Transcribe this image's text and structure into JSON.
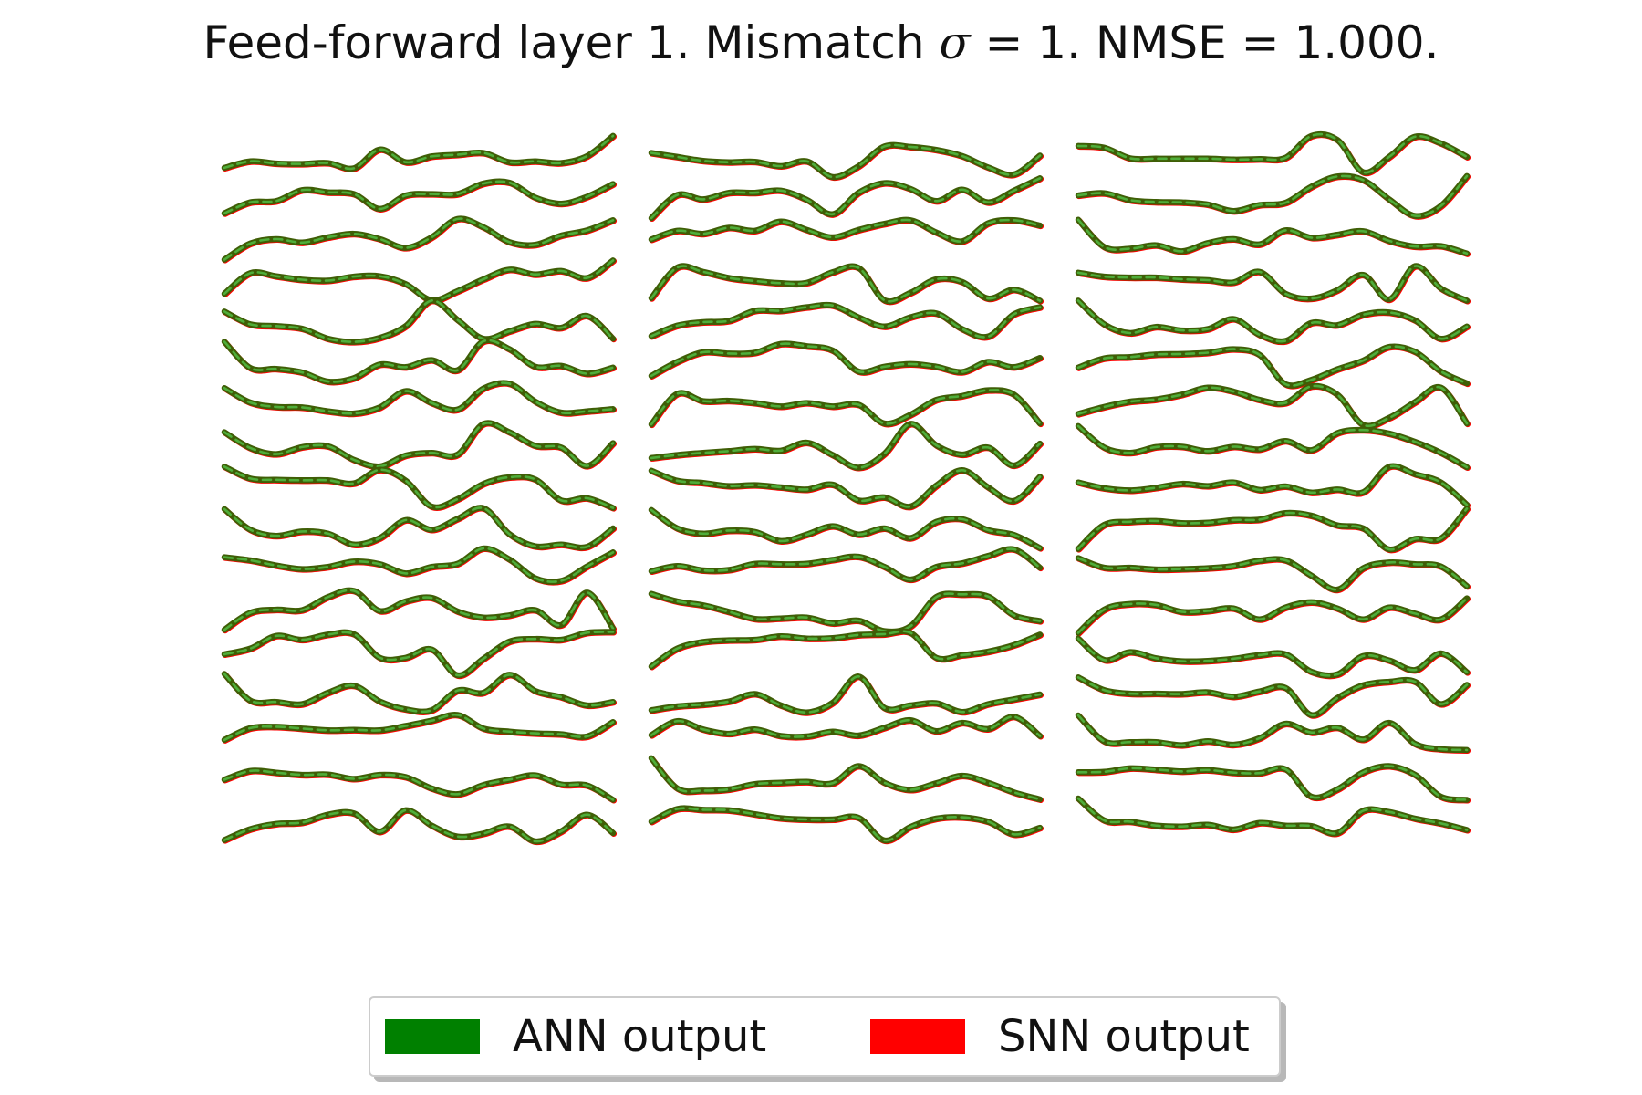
{
  "title": {
    "prefix": "Feed-forward layer 1. Mismatch ",
    "symbol": "σ",
    "suffix": " = 1. NMSE = 1.000."
  },
  "chart_data": {
    "type": "line",
    "grid": false,
    "axes_visible": false,
    "legend_position": "bottom-center",
    "legend": [
      {
        "label": "ANN output",
        "color": "#008000"
      },
      {
        "label": "SNN output",
        "color": "#ff0000"
      }
    ],
    "panels": [
      {
        "traces": [
          [
            0.21,
            0.36,
            0.31,
            0.3,
            0.32,
            0.2,
            0.63,
            0.34,
            0.47,
            0.51,
            0.55,
            0.34,
            0.36,
            0.32,
            0.48,
            0.94
          ],
          [
            0.12,
            0.37,
            0.4,
            0.65,
            0.6,
            0.56,
            0.22,
            0.53,
            0.56,
            0.56,
            0.8,
            0.82,
            0.48,
            0.34,
            0.5,
            0.79
          ],
          [
            0.01,
            0.38,
            0.48,
            0.4,
            0.52,
            0.6,
            0.48,
            0.28,
            0.52,
            0.94,
            0.75,
            0.41,
            0.35,
            0.56,
            0.68,
            0.91
          ],
          [
            0.18,
            0.65,
            0.58,
            0.5,
            0.48,
            0.57,
            0.58,
            0.4,
            0.03,
            0.24,
            0.51,
            0.73,
            0.62,
            0.7,
            0.54,
            0.94
          ],
          [
            0.72,
            0.43,
            0.39,
            0.33,
            0.1,
            0.03,
            0.12,
            0.39,
            0.97,
            0.53,
            0.1,
            0.27,
            0.44,
            0.35,
            0.62,
            0.1
          ],
          [
            0.98,
            0.38,
            0.36,
            0.28,
            0.07,
            0.15,
            0.46,
            0.4,
            0.56,
            0.33,
            0.99,
            0.81,
            0.41,
            0.43,
            0.25,
            0.39
          ],
          [
            0.87,
            0.54,
            0.44,
            0.43,
            0.34,
            0.29,
            0.43,
            0.8,
            0.53,
            0.38,
            0.86,
            0.97,
            0.56,
            0.31,
            0.34,
            0.39
          ],
          [
            0.81,
            0.45,
            0.31,
            0.47,
            0.49,
            0.18,
            0.03,
            0.28,
            0.34,
            0.3,
            1.0,
            0.81,
            0.5,
            0.46,
            0.04,
            0.56
          ],
          [
            0.97,
            0.7,
            0.67,
            0.66,
            0.66,
            0.59,
            0.9,
            0.65,
            0.06,
            0.23,
            0.58,
            0.73,
            0.68,
            0.2,
            0.25,
            0.03
          ],
          [
            0.95,
            0.48,
            0.34,
            0.44,
            0.39,
            0.14,
            0.29,
            0.7,
            0.48,
            0.73,
            0.97,
            0.38,
            0.1,
            0.14,
            0.09,
            0.51
          ],
          [
            0.8,
            0.73,
            0.61,
            0.53,
            0.58,
            0.7,
            0.64,
            0.43,
            0.58,
            0.65,
            1.0,
            0.75,
            0.32,
            0.26,
            0.59,
            0.91
          ],
          [
            0.09,
            0.48,
            0.55,
            0.54,
            0.84,
            0.98,
            0.52,
            0.74,
            0.82,
            0.51,
            0.37,
            0.42,
            0.54,
            0.2,
            0.94,
            0.12
          ],
          [
            0.48,
            0.61,
            0.9,
            0.81,
            0.93,
            0.94,
            0.4,
            0.4,
            0.59,
            0.0,
            0.38,
            0.77,
            0.83,
            0.81,
            0.97,
            0.99
          ],
          [
            0.98,
            0.37,
            0.34,
            0.29,
            0.55,
            0.71,
            0.35,
            0.17,
            0.15,
            0.6,
            0.55,
            0.96,
            0.59,
            0.45,
            0.26,
            0.34
          ],
          [
            0.42,
            0.69,
            0.72,
            0.68,
            0.64,
            0.65,
            0.64,
            0.74,
            0.86,
            0.99,
            0.68,
            0.61,
            0.57,
            0.55,
            0.5,
            0.83
          ],
          [
            0.46,
            0.66,
            0.62,
            0.57,
            0.58,
            0.48,
            0.57,
            0.52,
            0.26,
            0.13,
            0.34,
            0.46,
            0.56,
            0.35,
            0.33,
            0.0
          ],
          [
            0.03,
            0.28,
            0.4,
            0.43,
            0.61,
            0.64,
            0.22,
            0.71,
            0.36,
            0.11,
            0.18,
            0.34,
            0.0,
            0.23,
            0.61,
            0.19
          ]
        ]
      },
      {
        "traces": [
          [
            0.55,
            0.46,
            0.37,
            0.34,
            0.35,
            0.25,
            0.36,
            0.0,
            0.25,
            0.7,
            0.69,
            0.62,
            0.48,
            0.22,
            0.06,
            0.49
          ],
          [
            0.01,
            0.54,
            0.44,
            0.59,
            0.59,
            0.64,
            0.43,
            0.1,
            0.59,
            0.81,
            0.68,
            0.4,
            0.66,
            0.37,
            0.64,
            0.92
          ],
          [
            0.47,
            0.67,
            0.6,
            0.74,
            0.67,
            0.88,
            0.69,
            0.52,
            0.69,
            0.83,
            0.91,
            0.63,
            0.43,
            0.84,
            0.91,
            0.79
          ],
          [
            0.08,
            0.78,
            0.68,
            0.54,
            0.47,
            0.42,
            0.43,
            0.67,
            0.77,
            0.03,
            0.2,
            0.51,
            0.45,
            0.07,
            0.27,
            0.02
          ],
          [
            0.16,
            0.4,
            0.48,
            0.51,
            0.74,
            0.74,
            0.82,
            0.86,
            0.59,
            0.38,
            0.59,
            0.68,
            0.32,
            0.15,
            0.66,
            0.82
          ],
          [
            0.2,
            0.52,
            0.74,
            0.71,
            0.73,
            0.93,
            0.88,
            0.78,
            0.3,
            0.41,
            0.47,
            0.41,
            0.29,
            0.52,
            0.4,
            0.61
          ],
          [
            0.04,
            0.74,
            0.57,
            0.58,
            0.53,
            0.45,
            0.53,
            0.45,
            0.49,
            0.06,
            0.26,
            0.6,
            0.69,
            0.82,
            0.72,
            0.06
          ],
          [
            0.22,
            0.29,
            0.34,
            0.38,
            0.43,
            0.39,
            0.57,
            0.29,
            0.0,
            0.32,
            1.0,
            0.51,
            0.3,
            0.46,
            0.05,
            0.55
          ],
          [
            0.88,
            0.65,
            0.6,
            0.53,
            0.55,
            0.5,
            0.45,
            0.56,
            0.2,
            0.27,
            0.06,
            0.54,
            0.89,
            0.5,
            0.19,
            0.74
          ],
          [
            0.93,
            0.51,
            0.39,
            0.46,
            0.43,
            0.22,
            0.37,
            0.56,
            0.37,
            0.51,
            0.29,
            0.66,
            0.72,
            0.47,
            0.36,
            0.06
          ],
          [
            0.48,
            0.6,
            0.5,
            0.51,
            0.65,
            0.64,
            0.65,
            0.74,
            0.81,
            0.58,
            0.29,
            0.58,
            0.66,
            0.83,
            0.98,
            0.56
          ],
          [
            0.91,
            0.74,
            0.65,
            0.5,
            0.34,
            0.35,
            0.37,
            0.24,
            0.3,
            0.06,
            0.17,
            0.84,
            0.9,
            0.85,
            0.42,
            0.29
          ],
          [
            0.2,
            0.61,
            0.76,
            0.8,
            0.81,
            0.89,
            0.84,
            0.85,
            0.92,
            0.94,
            0.97,
            0.4,
            0.46,
            0.54,
            0.69,
            0.93
          ],
          [
            0.15,
            0.24,
            0.28,
            0.35,
            0.52,
            0.26,
            0.1,
            0.32,
            0.92,
            0.2,
            0.26,
            0.31,
            0.11,
            0.29,
            0.4,
            0.51
          ],
          [
            0.53,
            0.85,
            0.66,
            0.56,
            0.66,
            0.51,
            0.5,
            0.61,
            0.52,
            0.7,
            0.87,
            0.62,
            0.81,
            0.67,
            0.95,
            0.51
          ],
          [
            0.95,
            0.26,
            0.21,
            0.24,
            0.36,
            0.39,
            0.41,
            0.38,
            0.77,
            0.39,
            0.23,
            0.38,
            0.55,
            0.39,
            0.17,
            0.01
          ],
          [
            0.45,
            0.74,
            0.72,
            0.71,
            0.62,
            0.53,
            0.5,
            0.5,
            0.54,
            0.02,
            0.33,
            0.52,
            0.55,
            0.45,
            0.16,
            0.31
          ]
        ]
      },
      {
        "traces": [
          [
            0.71,
            0.67,
            0.43,
            0.42,
            0.42,
            0.42,
            0.4,
            0.41,
            0.44,
            0.94,
            0.85,
            0.11,
            0.46,
            0.92,
            0.77,
            0.46
          ],
          [
            0.53,
            0.58,
            0.42,
            0.38,
            0.37,
            0.32,
            0.17,
            0.31,
            0.36,
            0.73,
            0.96,
            0.88,
            0.44,
            0.06,
            0.29,
            0.97
          ],
          [
            0.92,
            0.3,
            0.26,
            0.34,
            0.2,
            0.39,
            0.48,
            0.36,
            0.68,
            0.51,
            0.58,
            0.66,
            0.44,
            0.31,
            0.32,
            0.15
          ],
          [
            0.66,
            0.57,
            0.55,
            0.55,
            0.51,
            0.49,
            0.44,
            0.68,
            0.18,
            0.07,
            0.26,
            0.61,
            0.05,
            0.81,
            0.3,
            0.02
          ],
          [
            0.97,
            0.43,
            0.23,
            0.37,
            0.29,
            0.32,
            0.55,
            0.19,
            0.05,
            0.46,
            0.41,
            0.65,
            0.7,
            0.52,
            0.1,
            0.38
          ],
          [
            0.39,
            0.6,
            0.63,
            0.69,
            0.7,
            0.73,
            0.81,
            0.68,
            0.01,
            0.11,
            0.35,
            0.55,
            0.86,
            0.75,
            0.3,
            0.03
          ],
          [
            0.28,
            0.44,
            0.56,
            0.61,
            0.72,
            0.88,
            0.79,
            0.6,
            0.53,
            0.91,
            0.72,
            0.03,
            0.19,
            0.55,
            0.88,
            0.06
          ],
          [
            0.95,
            0.46,
            0.34,
            0.47,
            0.48,
            0.38,
            0.48,
            0.42,
            0.61,
            0.4,
            0.79,
            0.86,
            0.78,
            0.59,
            0.34,
            0.01
          ],
          [
            0.61,
            0.48,
            0.43,
            0.49,
            0.58,
            0.53,
            0.61,
            0.44,
            0.52,
            0.38,
            0.45,
            0.39,
            0.97,
            0.8,
            0.61,
            0.1
          ],
          [
            0.04,
            0.59,
            0.66,
            0.68,
            0.63,
            0.64,
            0.7,
            0.71,
            0.86,
            0.8,
            0.58,
            0.51,
            0.03,
            0.27,
            0.28,
            0.96
          ],
          [
            0.78,
            0.56,
            0.56,
            0.52,
            0.53,
            0.55,
            0.6,
            0.72,
            0.73,
            0.38,
            0.06,
            0.55,
            0.68,
            0.64,
            0.59,
            0.14
          ],
          [
            0.02,
            0.55,
            0.68,
            0.66,
            0.5,
            0.52,
            0.58,
            0.33,
            0.6,
            0.72,
            0.58,
            0.33,
            0.6,
            0.46,
            0.33,
            0.81
          ],
          [
            0.84,
            0.35,
            0.53,
            0.39,
            0.32,
            0.33,
            0.38,
            0.46,
            0.48,
            0.08,
            0.02,
            0.44,
            0.34,
            0.12,
            0.5,
            0.07
          ],
          [
            0.9,
            0.61,
            0.53,
            0.53,
            0.52,
            0.56,
            0.46,
            0.58,
            0.66,
            0.04,
            0.43,
            0.72,
            0.8,
            0.8,
            0.29,
            0.73
          ],
          [
            0.98,
            0.39,
            0.37,
            0.37,
            0.3,
            0.39,
            0.31,
            0.46,
            0.79,
            0.59,
            0.7,
            0.43,
            0.81,
            0.33,
            0.21,
            0.19
          ],
          [
            0.63,
            0.64,
            0.72,
            0.69,
            0.65,
            0.68,
            0.62,
            0.61,
            0.7,
            0.07,
            0.24,
            0.63,
            0.77,
            0.57,
            0.07,
            0.0
          ],
          [
            0.98,
            0.48,
            0.45,
            0.36,
            0.34,
            0.38,
            0.27,
            0.42,
            0.36,
            0.35,
            0.19,
            0.7,
            0.67,
            0.52,
            0.41,
            0.26
          ]
        ]
      }
    ]
  }
}
